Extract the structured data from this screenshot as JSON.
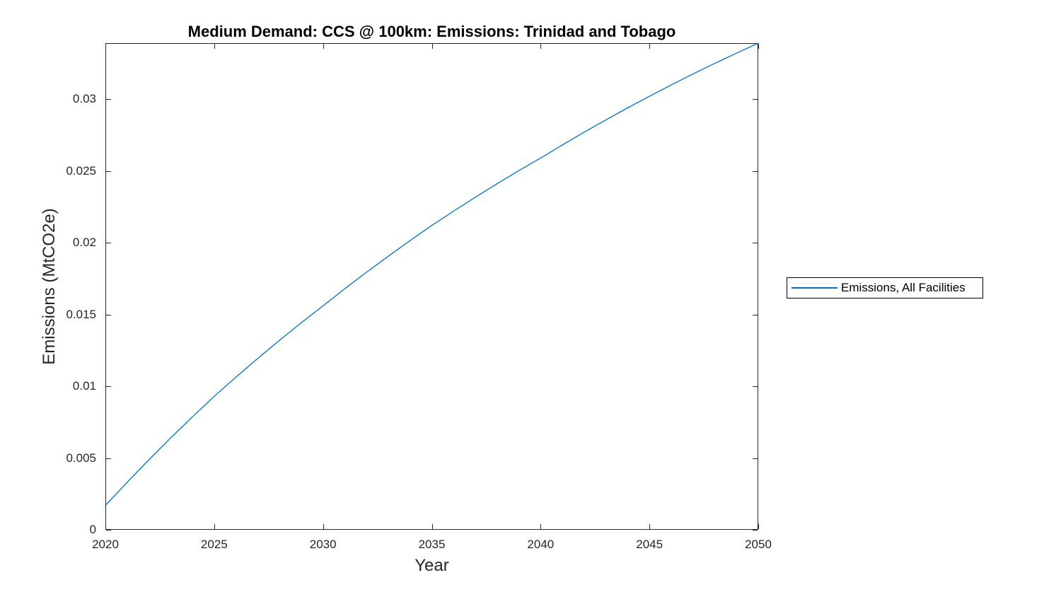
{
  "chart_data": {
    "type": "line",
    "title": "Medium Demand: CCS @ 100km: Emissions: Trinidad and Tobago",
    "xlabel": "Year",
    "ylabel": "Emissions (MtCO2e)",
    "xlim": [
      2020,
      2050
    ],
    "ylim": [
      0,
      0.0339
    ],
    "xticks": [
      2020,
      2025,
      2030,
      2035,
      2040,
      2045,
      2050
    ],
    "xtick_labels": [
      "2020",
      "2025",
      "2030",
      "2035",
      "2040",
      "2045",
      "2050"
    ],
    "yticks": [
      0,
      0.005,
      0.01,
      0.015,
      0.02,
      0.025,
      0.03
    ],
    "ytick_labels": [
      "0",
      "0.005",
      "0.01",
      "0.015",
      "0.02",
      "0.025",
      "0.03"
    ],
    "grid": false,
    "axis_color": "#262626",
    "background": "#ffffff",
    "legend": {
      "position": "outside-right",
      "entries": [
        {
          "label": "Emissions, All Facilities",
          "color": "#0072BD"
        }
      ]
    },
    "series": [
      {
        "name": "Emissions, All Facilities",
        "color": "#0072BD",
        "x": [
          2020,
          2021,
          2022,
          2023,
          2024,
          2025,
          2026,
          2027,
          2028,
          2029,
          2030,
          2031,
          2032,
          2033,
          2034,
          2035,
          2036,
          2037,
          2038,
          2039,
          2040,
          2041,
          2042,
          2043,
          2044,
          2045,
          2046,
          2047,
          2048,
          2049,
          2050
        ],
        "y": [
          0.0017,
          0.00331,
          0.00488,
          0.0064,
          0.00787,
          0.0093,
          0.01064,
          0.01194,
          0.0132,
          0.01442,
          0.0156,
          0.01679,
          0.01794,
          0.01906,
          0.02015,
          0.0212,
          0.0222,
          0.02317,
          0.02411,
          0.02502,
          0.0259,
          0.02681,
          0.0277,
          0.02856,
          0.02939,
          0.0302,
          0.03099,
          0.03175,
          0.03249,
          0.0332,
          0.0339
        ]
      }
    ]
  }
}
